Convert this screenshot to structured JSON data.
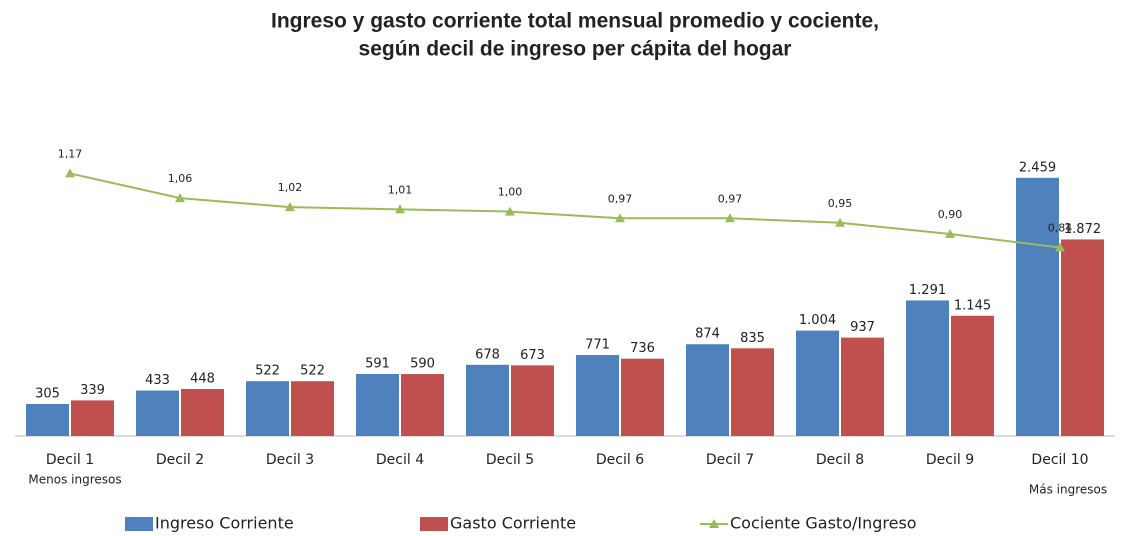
{
  "chart_data": {
    "type": "bar",
    "title": "Ingreso y gasto corriente total mensual promedio y cociente,",
    "subtitle": "según decil de ingreso per cápita del hogar",
    "categories": [
      "Decil 1",
      "Decil 2",
      "Decil 3",
      "Decil 4",
      "Decil 5",
      "Decil 6",
      "Decil 7",
      "Decil 8",
      "Decil 9",
      "Decil 10"
    ],
    "annotations": [
      "Menos ingresos",
      "Más ingresos"
    ],
    "ylim": [
      0,
      2800
    ],
    "y2lim": [
      0,
      1.31
    ],
    "legend": "bottom",
    "series": [
      {
        "name": "Ingreso Corriente",
        "type": "bar",
        "color": "#4f81bd",
        "values": [
          305,
          433,
          522,
          591,
          678,
          771,
          874,
          1004,
          1291,
          2459
        ],
        "value_labels": [
          "305",
          "433",
          "522",
          "591",
          "678",
          "771",
          "874",
          "1.004",
          "1.291",
          "2.459"
        ]
      },
      {
        "name": "Gasto Corriente",
        "type": "bar",
        "color": "#c0504d",
        "values": [
          339,
          448,
          522,
          590,
          673,
          736,
          835,
          937,
          1145,
          1872
        ],
        "value_labels": [
          "339",
          "448",
          "522",
          "590",
          "673",
          "736",
          "835",
          "937",
          "1.145",
          "1.872"
        ]
      },
      {
        "name": "Cociente Gasto/Ingreso",
        "type": "line",
        "axis": "y2",
        "color": "#9bbb59",
        "values": [
          1.17,
          1.06,
          1.02,
          1.01,
          1.0,
          0.97,
          0.97,
          0.95,
          0.9,
          0.84
        ],
        "value_labels": [
          "1,17",
          "1,06",
          "1,02",
          "1,01",
          "1,00",
          "0,97",
          "0,97",
          "0,95",
          "0,90",
          "0,84"
        ]
      }
    ]
  }
}
